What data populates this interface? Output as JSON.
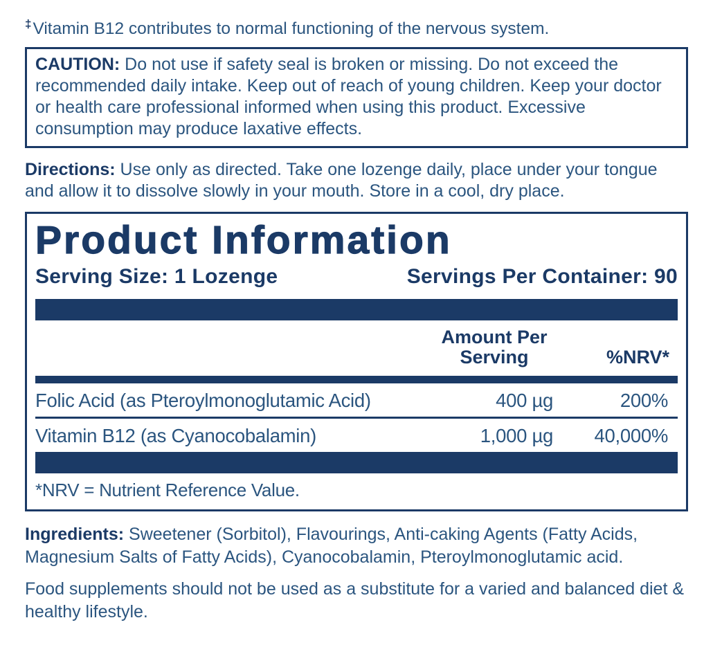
{
  "colors": {
    "navy": "#1b3a66",
    "text_blue": "#2b557f",
    "background": "#ffffff"
  },
  "claim": {
    "symbol": "‡",
    "text": "Vitamin B12 contributes to normal functioning of the nervous system."
  },
  "caution": {
    "label": "CAUTION:",
    "text": "Do not use if safety seal is broken or missing. Do not exceed the recommended daily intake. Keep out of reach of young children. Keep your doctor or health care professional informed when using this product. Excessive consumption may produce laxative effects."
  },
  "directions": {
    "label": "Directions:",
    "text": "Use only as directed. Take one lozenge daily, place under your tongue and allow it to dissolve slowly in your mouth. Store in a cool, dry place."
  },
  "product": {
    "title": "Product Information",
    "serving_size": "Serving Size: 1 Lozenge",
    "servings_per_container": "Servings Per Container: 90"
  },
  "table": {
    "header": {
      "amount": "Amount Per Serving",
      "nrv": "%NRV*"
    },
    "rows": [
      {
        "name": "Folic Acid (as Pteroylmonoglutamic Acid)",
        "amount": "400 µg",
        "nrv": "200%"
      },
      {
        "name": "Vitamin B12 (as Cyanocobalamin)",
        "amount": "1,000 µg",
        "nrv": "40,000%"
      }
    ],
    "footnote": "*NRV = Nutrient Reference Value."
  },
  "ingredients": {
    "label": "Ingredients:",
    "text": "Sweetener (Sorbitol), Flavourings, Anti-caking Agents (Fatty Acids, Magnesium Salts of Fatty Acids), Cyanocobalamin, Pteroylmonoglutamic acid."
  },
  "footer": {
    "note": "Food supplements should not be used as a substitute for a varied and balanced diet & healthy lifestyle."
  }
}
